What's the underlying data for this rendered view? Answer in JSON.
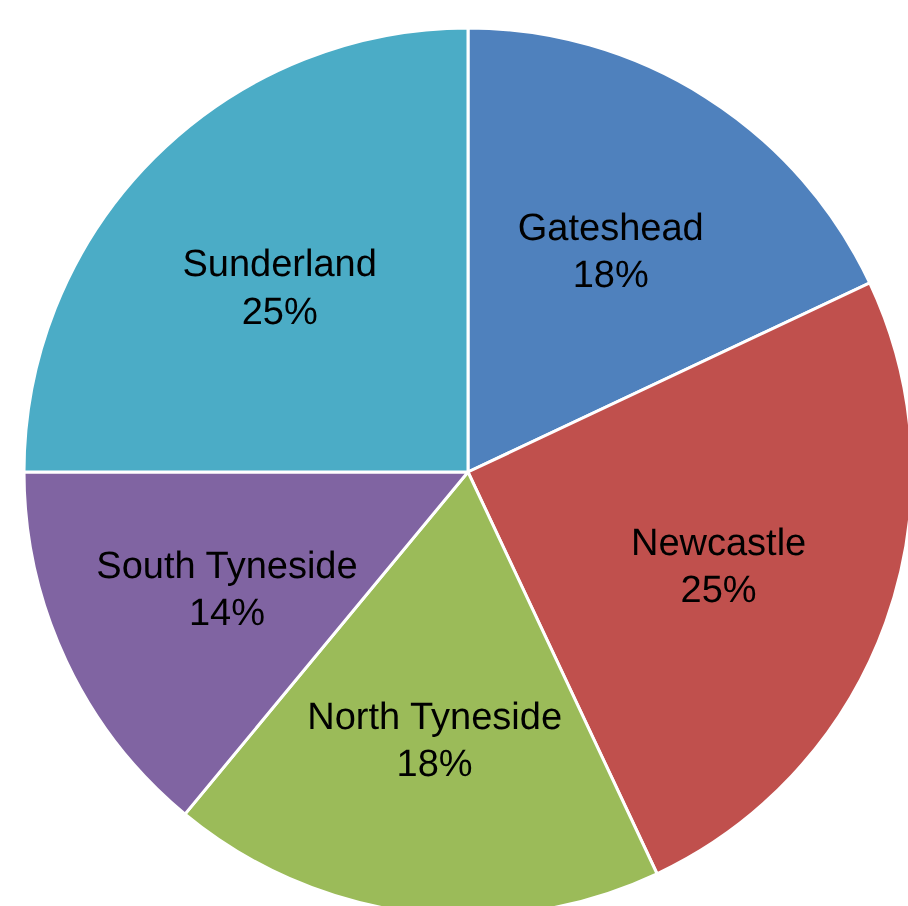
{
  "chart_data": {
    "type": "pie",
    "categories": [
      "Gateshead",
      "Newcastle",
      "North Tyneside",
      "South Tyneside",
      "Sunderland"
    ],
    "values": [
      18,
      25,
      18,
      14,
      25
    ],
    "colors": [
      "#4f81bd",
      "#c0504d",
      "#9bbb59",
      "#8064a2",
      "#4bacc6"
    ],
    "value_labels": [
      "18%",
      "25%",
      "18%",
      "14%",
      "25%"
    ],
    "legend": false
  }
}
